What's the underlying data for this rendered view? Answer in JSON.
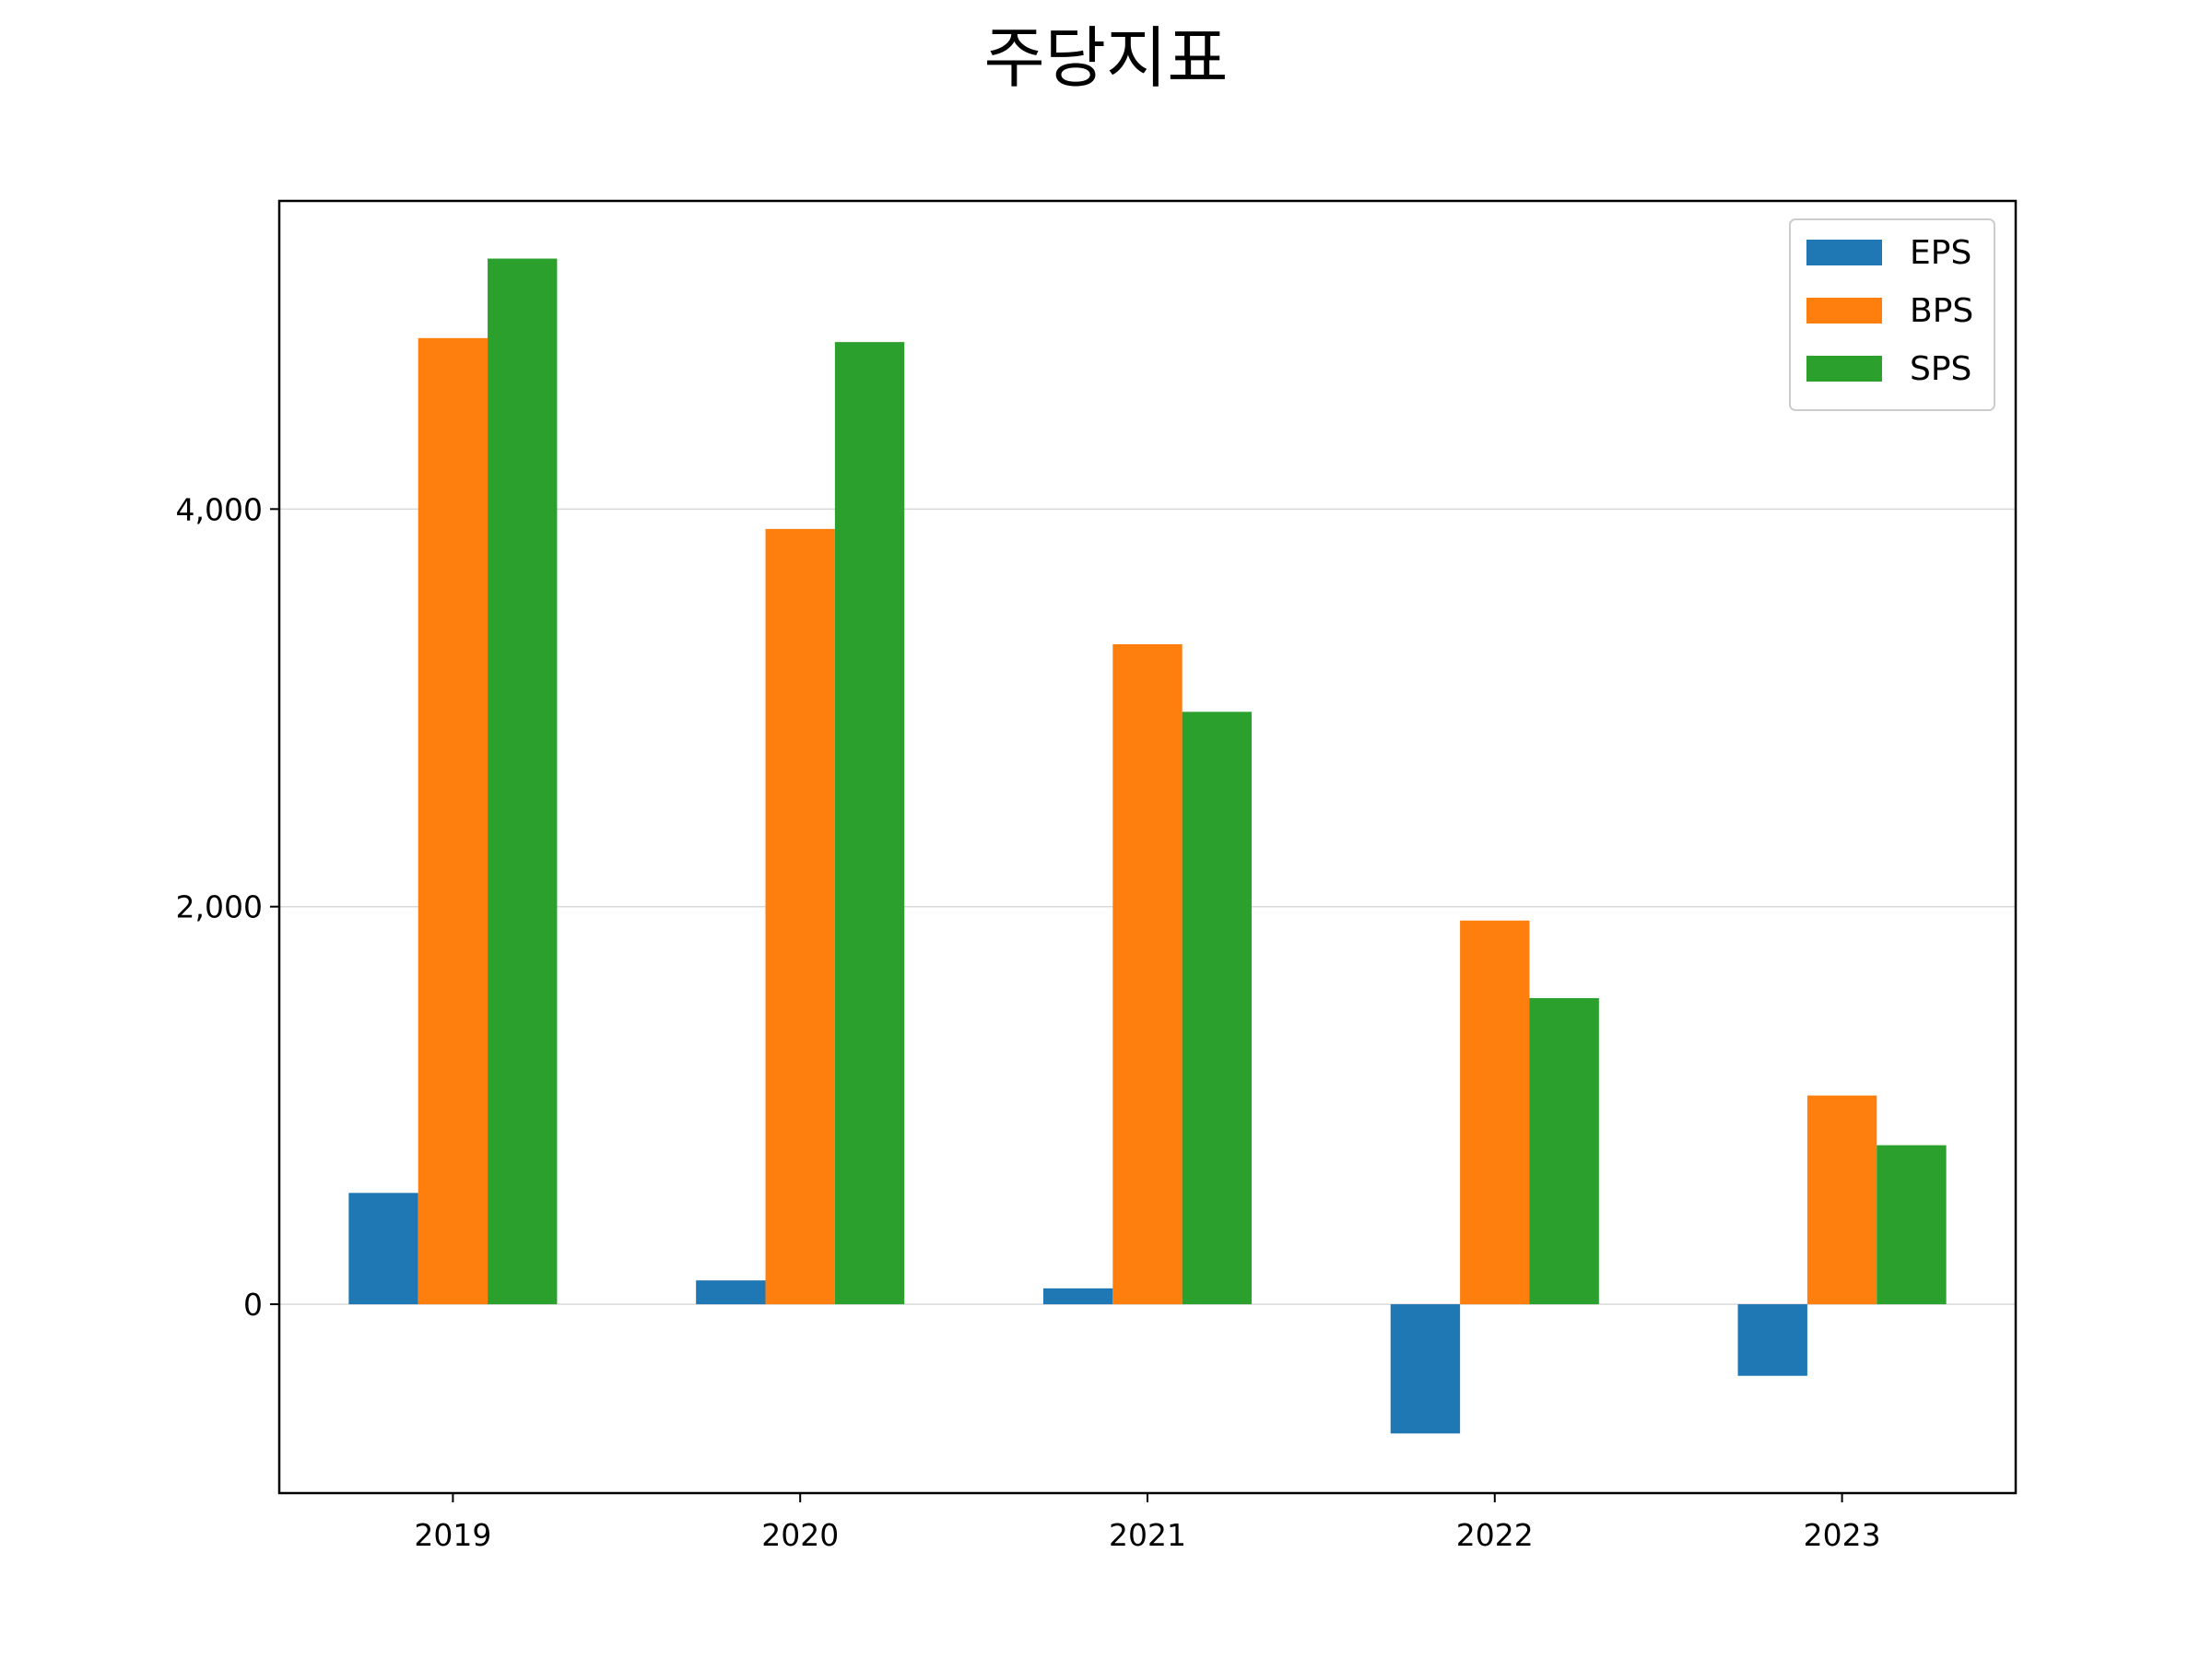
{
  "chart_data": {
    "type": "bar",
    "title": "주당지표",
    "xlabel": "",
    "ylabel": "",
    "categories": [
      "2019",
      "2020",
      "2021",
      "2022",
      "2023"
    ],
    "series": [
      {
        "name": "EPS",
        "color": "#1f77b4",
        "values": [
          560,
          120,
          80,
          -650,
          -360
        ]
      },
      {
        "name": "BPS",
        "color": "#ff7f0e",
        "values": [
          4860,
          3900,
          3320,
          1930,
          1050
        ]
      },
      {
        "name": "SPS",
        "color": "#2ca02c",
        "values": [
          5260,
          4840,
          2980,
          1540,
          800
        ]
      }
    ],
    "ylim": [
      -950,
      5550
    ],
    "yticks": [
      0,
      2000,
      4000
    ],
    "ytick_labels": [
      "0",
      "2,000",
      "4,000"
    ],
    "grid": "y",
    "legend_position": "top-right"
  }
}
